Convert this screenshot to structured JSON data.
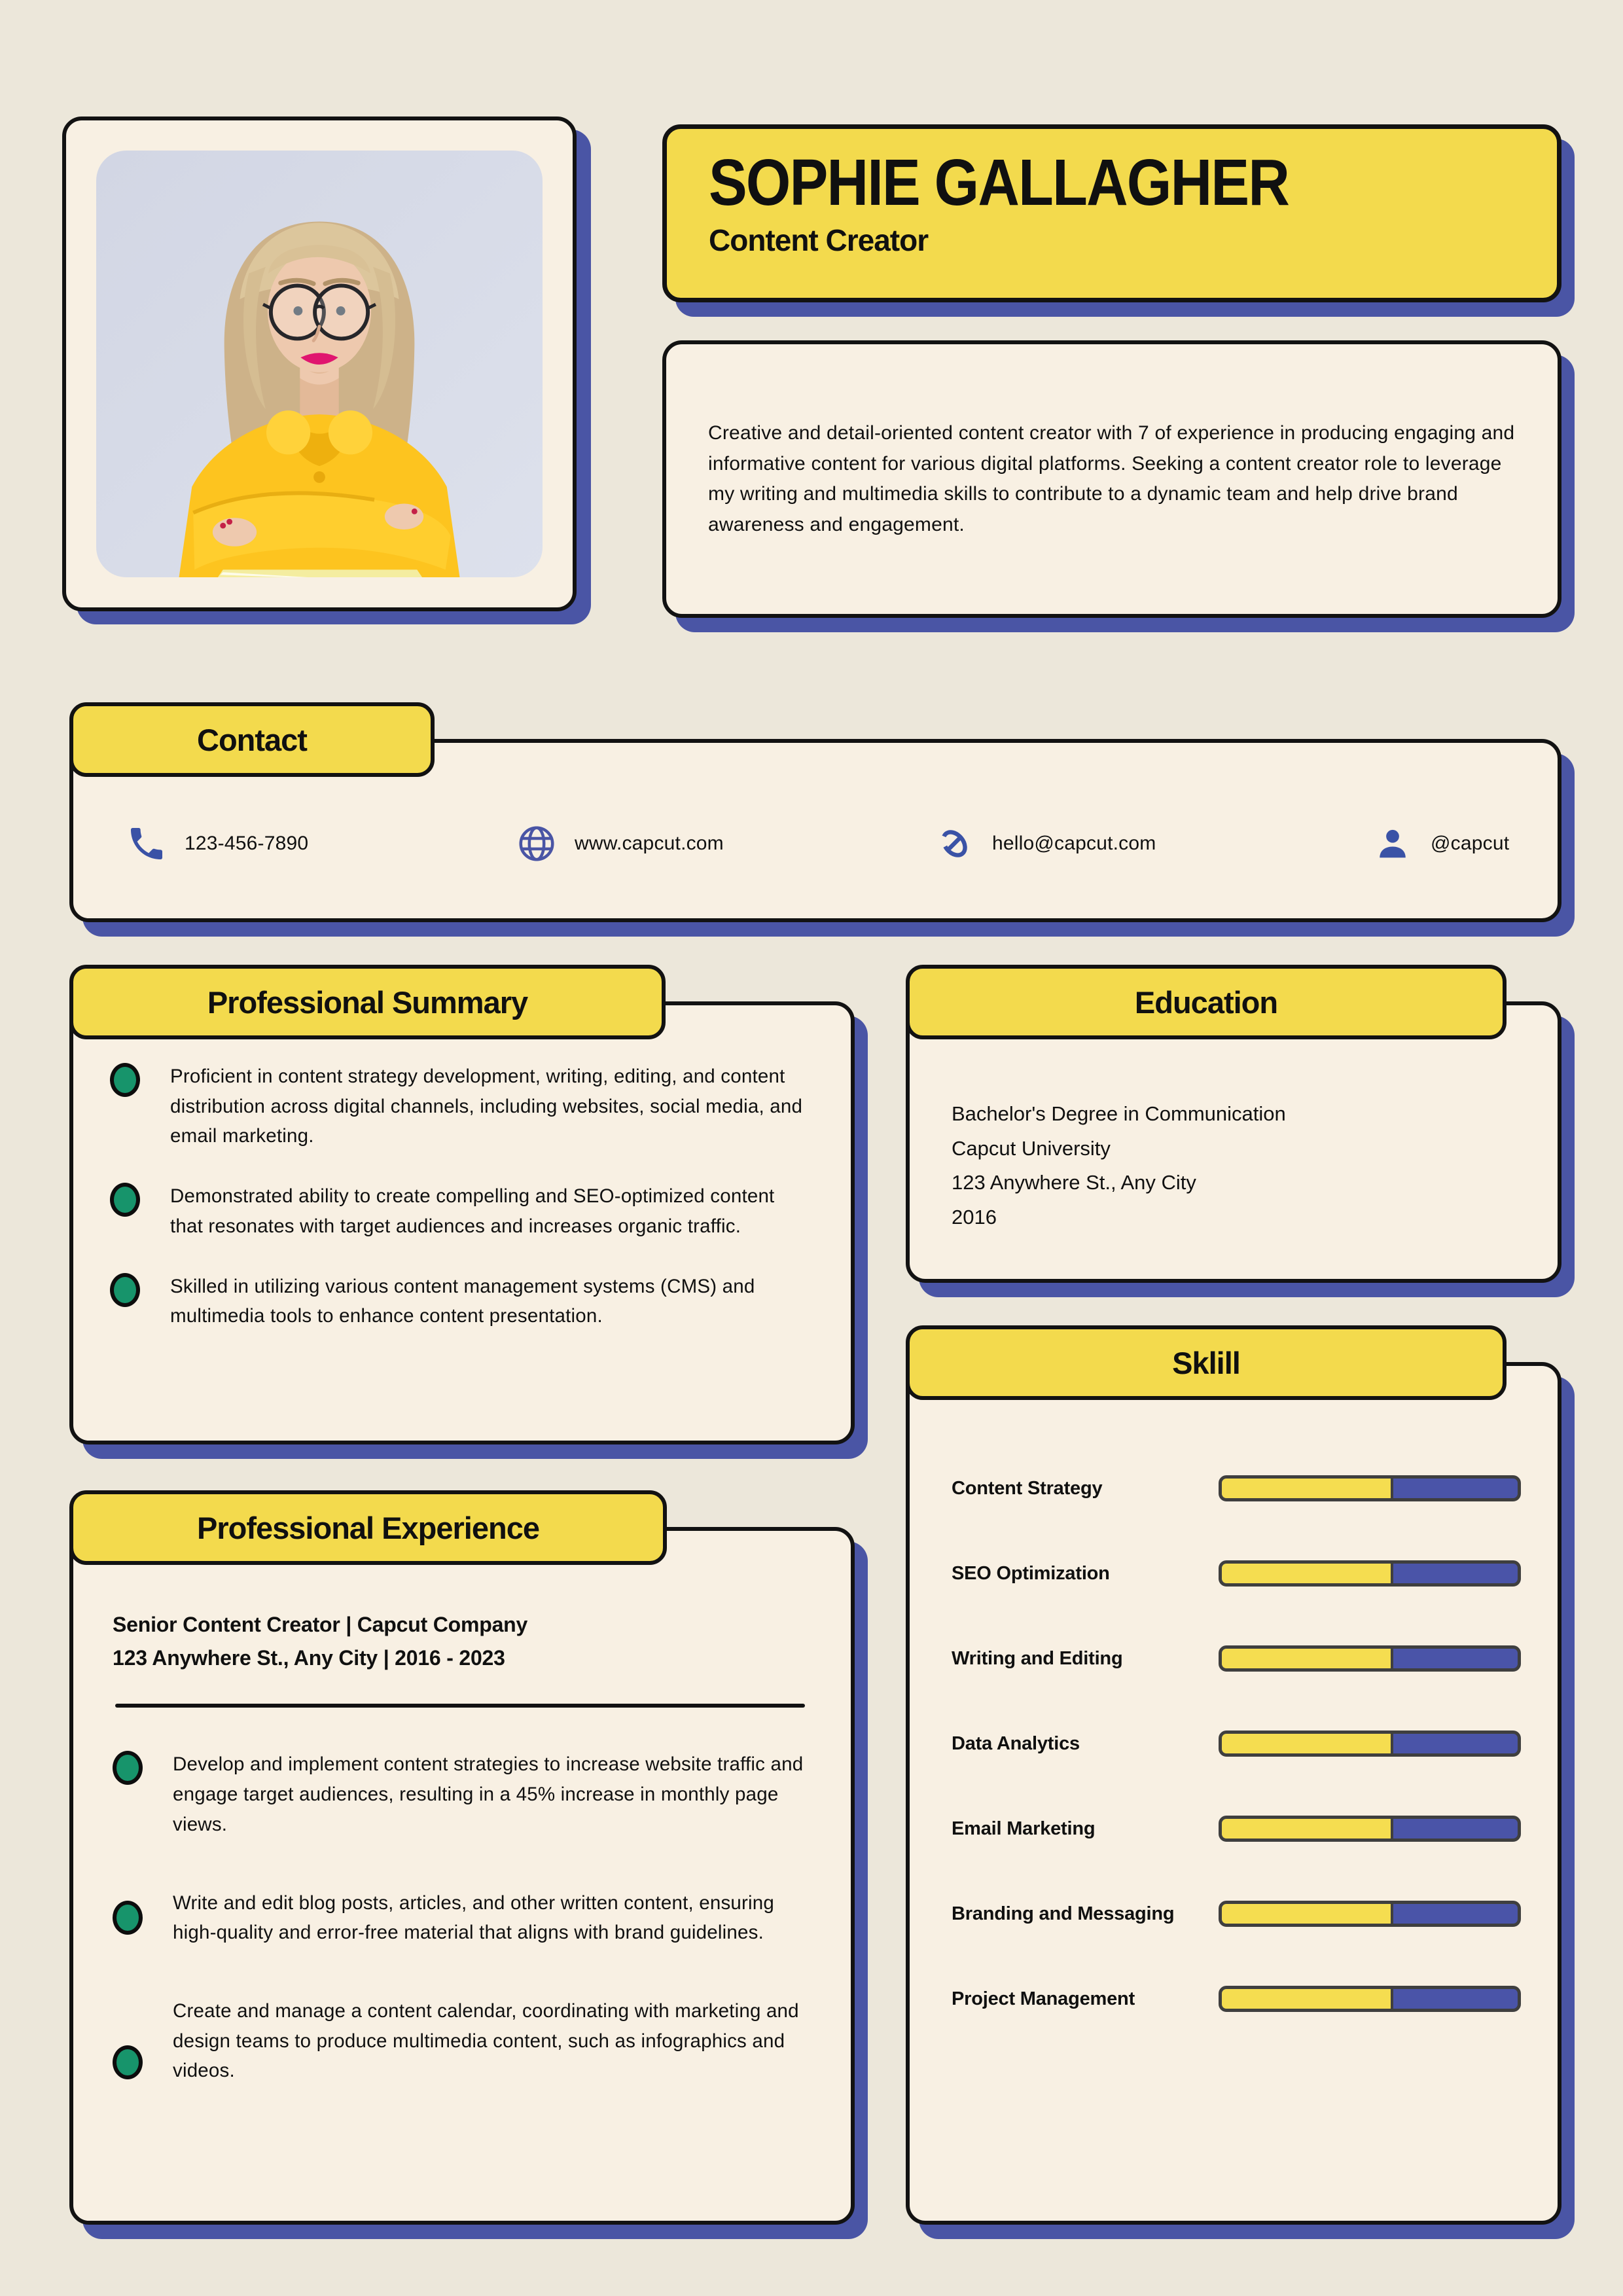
{
  "header": {
    "name": "SOPHIE GALLAGHER",
    "title": "Content Creator"
  },
  "intro": {
    "text": "Creative and detail-oriented content creator with 7 of experience in producing engaging and informative content for various digital platforms. Seeking a content creator role to leverage my writing and multimedia skills to contribute to a dynamic team and help drive brand awareness and engagement."
  },
  "contact": {
    "title": "Contact",
    "items": [
      {
        "icon": "phone-icon",
        "label": "123-456-7890"
      },
      {
        "icon": "globe-icon",
        "label": "www.capcut.com"
      },
      {
        "icon": "link-icon",
        "label": "hello@capcut.com"
      },
      {
        "icon": "user-icon",
        "label": "@capcut"
      }
    ]
  },
  "professional_summary": {
    "title": "Professional Summary",
    "bullets": [
      "Proficient in content strategy development, writing, editing, and content distribution across digital channels, including websites, social media, and email marketing.",
      "Demonstrated ability to create compelling and SEO-optimized content that resonates with target audiences and increases organic traffic.",
      "Skilled in utilizing various content management systems (CMS) and multimedia tools to enhance content presentation."
    ]
  },
  "education": {
    "title": "Education",
    "lines": [
      "Bachelor's Degree in Communication",
      "Capcut University",
      "123 Anywhere St., Any City",
      "2016"
    ]
  },
  "skills": {
    "title": "Sklill",
    "items": [
      {
        "label": "Content Strategy",
        "percent": 58
      },
      {
        "label": "SEO Optimization",
        "percent": 58
      },
      {
        "label": "Writing and Editing",
        "percent": 58
      },
      {
        "label": "Data Analytics",
        "percent": 58
      },
      {
        "label": "Email Marketing",
        "percent": 58
      },
      {
        "label": "Branding and Messaging",
        "percent": 58
      },
      {
        "label": "Project Management",
        "percent": 58
      }
    ]
  },
  "experience": {
    "title": "Professional Experience",
    "role_line": "Senior Content Creator | Capcut Company",
    "meta_line": "123 Anywhere St., Any City | 2016 - 2023",
    "bullets": [
      "Develop and implement content strategies to increase website traffic and engage target audiences, resulting in a 45% increase in monthly page views.",
      "Write and edit blog posts, articles, and other written content, ensuring high-quality and error-free material that aligns with brand guidelines.",
      "Create and manage a content calendar, coordinating with marketing and design teams to produce multimedia content, such as infographics and videos."
    ]
  },
  "colors": {
    "accent_yellow": "#F3DA4D",
    "shadow_blue": "#4A55A5",
    "bar_blue": "#4A54A8",
    "bullet_green": "#17946B",
    "card_cream": "#F8F0E3",
    "page_beige": "#ECE7DA",
    "icon_blue": "#3A52A6"
  }
}
